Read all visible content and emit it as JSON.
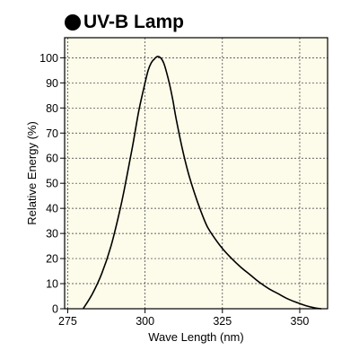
{
  "chart_data": {
    "type": "line",
    "title": "UV-B Lamp",
    "xlabel": "Wave Length (nm)",
    "ylabel": "Relative Energy (%)",
    "xlim": [
      274,
      359
    ],
    "ylim": [
      0,
      108
    ],
    "xticks": [
      275,
      300,
      325,
      350
    ],
    "yticks": [
      0,
      10,
      20,
      30,
      40,
      50,
      60,
      70,
      80,
      90,
      100
    ],
    "grid": true,
    "grid_style": "dashed",
    "plot_background": "#fdfbea",
    "line_color": "#000000",
    "series": [
      {
        "x": [
          280,
          283,
          286,
          289,
          292,
          294,
          296,
          298,
          300,
          301,
          302,
          303,
          304,
          305,
          306,
          307,
          308,
          309,
          310,
          312,
          314,
          316,
          318,
          320,
          322,
          325,
          328,
          331,
          334,
          337,
          340,
          343,
          346,
          349,
          352,
          355,
          357
        ],
        "y": [
          0,
          6,
          14,
          25,
          40,
          52,
          65,
          79,
          90,
          95,
          98,
          99.5,
          100.5,
          100,
          98,
          94,
          89,
          83,
          76,
          64,
          54,
          46,
          39,
          33,
          29,
          24,
          20,
          16.5,
          13.5,
          10.5,
          8,
          6,
          4,
          2.5,
          1.2,
          0.3,
          0
        ]
      }
    ]
  }
}
